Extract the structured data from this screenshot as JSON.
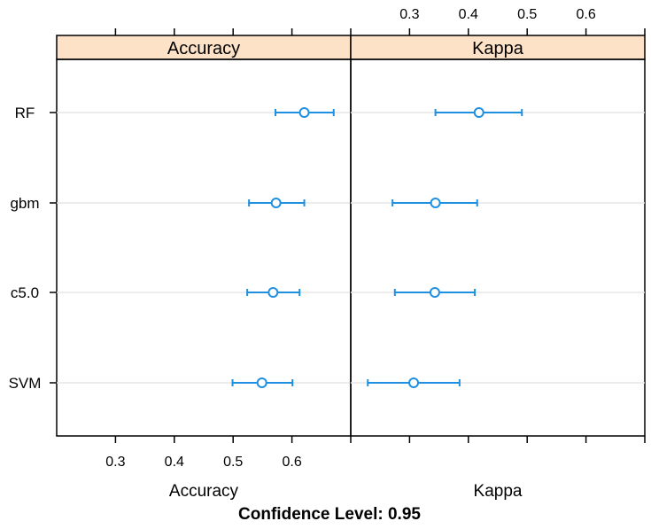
{
  "chart_data": {
    "type": "scatter",
    "subtype": "dotplot-with-confidence-intervals",
    "footer": "Confidence Level: 0.95",
    "models": [
      "RF",
      "gbm",
      "c5.0",
      "SVM"
    ],
    "marker_color": "#1f8fe0",
    "strip_color": "#fde2c8",
    "panels": [
      {
        "title": "Accuracy",
        "xlabel": "Accuracy",
        "xlim": [
          0.2,
          0.7
        ],
        "ticks": [
          0.3,
          0.4,
          0.5,
          0.6
        ],
        "tick_labels": [
          "0.3",
          "0.4",
          "0.5",
          "0.6"
        ],
        "tick_labels_position": "bottom",
        "estimates": [
          {
            "model": "RF",
            "value": 0.621,
            "lower": 0.572,
            "upper": 0.671
          },
          {
            "model": "gbm",
            "value": 0.573,
            "lower": 0.527,
            "upper": 0.621
          },
          {
            "model": "c5.0",
            "value": 0.568,
            "lower": 0.524,
            "upper": 0.613
          },
          {
            "model": "SVM",
            "value": 0.549,
            "lower": 0.499,
            "upper": 0.601
          }
        ]
      },
      {
        "title": "Kappa",
        "xlabel": "Kappa",
        "xlim": [
          0.2,
          0.7
        ],
        "ticks": [
          0.3,
          0.4,
          0.5,
          0.6
        ],
        "tick_labels": [
          "0.3",
          "0.4",
          "0.5",
          "0.6"
        ],
        "tick_labels_position": "top",
        "estimates": [
          {
            "model": "RF",
            "value": 0.418,
            "lower": 0.344,
            "upper": 0.491
          },
          {
            "model": "gbm",
            "value": 0.344,
            "lower": 0.271,
            "upper": 0.415
          },
          {
            "model": "c5.0",
            "value": 0.343,
            "lower": 0.275,
            "upper": 0.411
          },
          {
            "model": "SVM",
            "value": 0.307,
            "lower": 0.229,
            "upper": 0.385
          }
        ]
      }
    ]
  }
}
